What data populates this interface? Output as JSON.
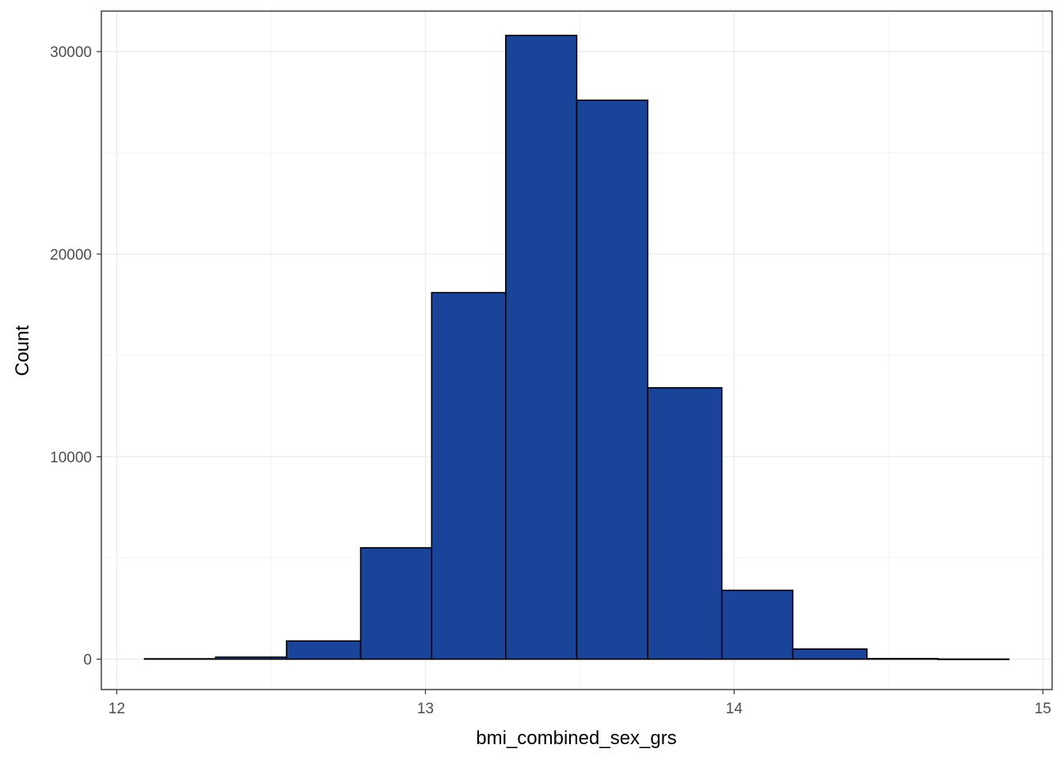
{
  "chart_data": {
    "type": "bar",
    "subtype": "histogram",
    "xlabel": "bmi_combined_sex_grs",
    "ylabel": "Count",
    "xlim": [
      11.95,
      15.03
    ],
    "ylim": [
      -1500,
      32000
    ],
    "x_ticks": [
      12,
      13,
      14,
      15
    ],
    "x_tick_labels": [
      "12",
      "13",
      "14",
      "15"
    ],
    "x_minor_ticks": [
      12.5,
      13.5,
      14.5
    ],
    "y_ticks": [
      0,
      10000,
      20000,
      30000
    ],
    "y_tick_labels": [
      "0",
      "10000",
      "20000",
      "30000"
    ],
    "y_minor_ticks": [
      5000,
      15000,
      25000
    ],
    "grid": true,
    "bins": [
      {
        "x0": 12.09,
        "x1": 12.32,
        "count": 20
      },
      {
        "x0": 12.32,
        "x1": 12.55,
        "count": 100
      },
      {
        "x0": 12.55,
        "x1": 12.79,
        "count": 900
      },
      {
        "x0": 12.79,
        "x1": 13.02,
        "count": 5500
      },
      {
        "x0": 13.02,
        "x1": 13.26,
        "count": 18100
      },
      {
        "x0": 13.26,
        "x1": 13.49,
        "count": 30800
      },
      {
        "x0": 13.49,
        "x1": 13.72,
        "count": 27600
      },
      {
        "x0": 13.72,
        "x1": 13.96,
        "count": 13400
      },
      {
        "x0": 13.96,
        "x1": 14.19,
        "count": 3400
      },
      {
        "x0": 14.19,
        "x1": 14.43,
        "count": 500
      },
      {
        "x0": 14.43,
        "x1": 14.66,
        "count": 30
      },
      {
        "x0": 14.66,
        "x1": 14.89,
        "count": 5
      }
    ],
    "bar_fill": "#19449a",
    "bar_stroke": "#000000"
  }
}
